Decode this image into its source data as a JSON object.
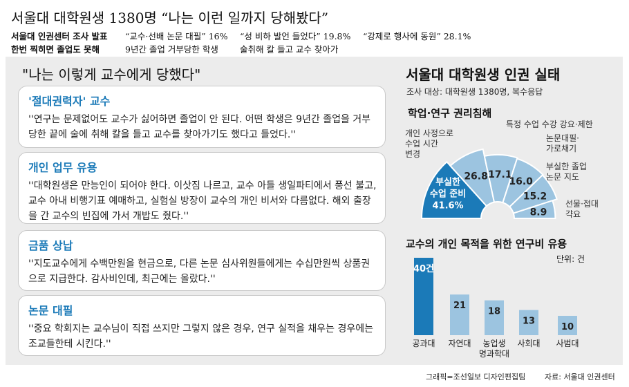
{
  "header": {
    "headline": "서울대 대학원생 1380명 “나는 이런 일까지 당해봤다”",
    "row1": {
      "label": "서울대 인권센터 조사 발표",
      "items": [
        "“교수·선배 논문 대필” 16%",
        "“성 비하 발언 들었다” 19.8%",
        "“강제로 행사에 동원” 28.1%"
      ]
    },
    "row2": {
      "label": "한번 찍히면 졸업도 못해",
      "items": [
        "9년간 졸업 거부당한 학생",
        "술취해 칼 들고 교수 찾아가"
      ]
    }
  },
  "quotes": {
    "title": "\"나는 이렇게 교수에게 당했다\"",
    "cards": [
      {
        "title": "'절대권력자' 교수",
        "body": "''연구는 문제없어도 교수가 싫어하면 졸업이 안 된다. 어떤 학생은 9년간 졸업을 거부당한 끝에 술에 취해 칼을 들고 교수를 찾아가기도 했다고 들었다.''"
      },
      {
        "title": "개인 업무 유용",
        "body": "''대학원생은 만능인이 되어야 한다. 이삿짐 나르고, 교수 아들 생일파티에서 풍선 불고, 교수 아내 비행기표 예매하고, 실험실 방장이 교수의 개인 비서와 다름없다. 해외 출장을 간 교수의 빈집에 가서 개밥도 줬다.''"
      },
      {
        "title": "금품 상납",
        "body": "''지도교수에게 수백만원을 현금으로, 다른 논문 심사위원들에게는 수십만원씩 상품권으로 지급한다. 감사비인데, 최근에는 올랐다.''"
      },
      {
        "title": "논문 대필",
        "body": "''중요 학회지는 교수님이 직접 쓰지만 그렇지 않은 경우, 연구 실적을 채우는 경우에는 조교들한테 시킨다.''"
      }
    ]
  },
  "survey": {
    "title": "서울대 대학원생 인권 실태",
    "subtitle": "조사 대상: 대학원생 1380명, 복수응답"
  },
  "chart_data": [
    {
      "type": "pie",
      "title": "학업·연구 권리침해",
      "slices": [
        {
          "label": "부실한 수업 준비",
          "value": 41.6,
          "display": "41.6%",
          "color": "#1b7ab8"
        },
        {
          "label": "개인 사정으로 수업 시간 변경",
          "value": 26.8,
          "display": "26.8",
          "color": "#9cc4e0"
        },
        {
          "label": "특정 수업 수강 강요·제한",
          "value": 17.1,
          "display": "17.1",
          "color": "#9cc4e0"
        },
        {
          "label": "논문대필·가로채기",
          "value": 16.0,
          "display": "16.0",
          "color": "#9cc4e0"
        },
        {
          "label": "부실한 졸업 논문 지도",
          "value": 15.2,
          "display": "15.2",
          "color": "#9cc4e0"
        },
        {
          "label": "선물·접대 갹요",
          "value": 8.9,
          "display": "8.9",
          "color": "#9cc4e0"
        }
      ]
    },
    {
      "type": "bar",
      "title": "교수의 개인 목적을 위한 연구비 유용",
      "unit": "단위: 건",
      "categories": [
        "공과대",
        "자연대",
        "농업생명과학대",
        "사회대",
        "사범대"
      ],
      "category_labels": [
        "공과대",
        "자연대",
        "농업생\n명과학대",
        "사회대",
        "사범대"
      ],
      "values": [
        40,
        21,
        18,
        13,
        10
      ],
      "value_labels": [
        "40건",
        "21",
        "18",
        "13",
        "10"
      ],
      "colors": {
        "highlight": "#1b7ab8",
        "base": "#9cc4e0"
      }
    }
  ],
  "footer": {
    "credit": "그래픽=조선일보 디자인편집팀",
    "source": "자료: 서울대 인권센터"
  }
}
